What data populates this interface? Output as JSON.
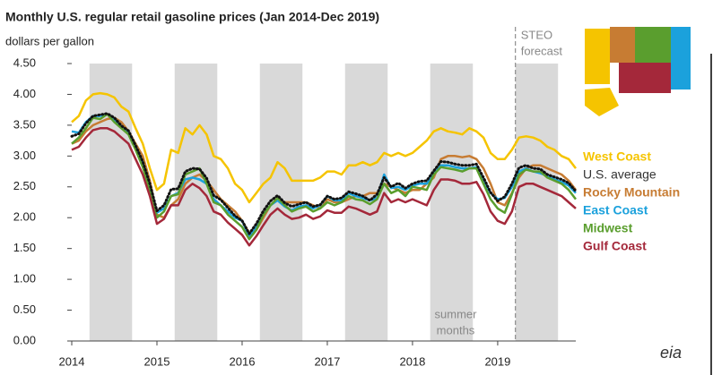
{
  "chart_data": {
    "type": "line",
    "title": "Monthly U.S. regular retail gasoline prices (Jan 2014-Dec 2019)",
    "y_label": "dollars per gallon",
    "x": [
      "2014-01",
      "2014-02",
      "2014-03",
      "2014-04",
      "2014-05",
      "2014-06",
      "2014-07",
      "2014-08",
      "2014-09",
      "2014-10",
      "2014-11",
      "2014-12",
      "2015-01",
      "2015-02",
      "2015-03",
      "2015-04",
      "2015-05",
      "2015-06",
      "2015-07",
      "2015-08",
      "2015-09",
      "2015-10",
      "2015-11",
      "2015-12",
      "2016-01",
      "2016-02",
      "2016-03",
      "2016-04",
      "2016-05",
      "2016-06",
      "2016-07",
      "2016-08",
      "2016-09",
      "2016-10",
      "2016-11",
      "2016-12",
      "2017-01",
      "2017-02",
      "2017-03",
      "2017-04",
      "2017-05",
      "2017-06",
      "2017-07",
      "2017-08",
      "2017-09",
      "2017-10",
      "2017-11",
      "2017-12",
      "2018-01",
      "2018-02",
      "2018-03",
      "2018-04",
      "2018-05",
      "2018-06",
      "2018-07",
      "2018-08",
      "2018-09",
      "2018-10",
      "2018-11",
      "2018-12",
      "2019-01",
      "2019-02",
      "2019-03",
      "2019-04",
      "2019-05",
      "2019-06",
      "2019-07",
      "2019-08",
      "2019-09",
      "2019-10",
      "2019-11",
      "2019-12"
    ],
    "xlim": [
      "2014-01",
      "2019-12"
    ],
    "xticks": [
      {
        "value": "2014-01",
        "label": "2014"
      },
      {
        "value": "2015-01",
        "label": "2015"
      },
      {
        "value": "2016-01",
        "label": "2016"
      },
      {
        "value": "2017-01",
        "label": "2017"
      },
      {
        "value": "2018-01",
        "label": "2018"
      },
      {
        "value": "2019-01",
        "label": "2019"
      }
    ],
    "ylim": [
      0,
      4.5
    ],
    "yticks": [
      {
        "value": 0,
        "label": "0.00"
      },
      {
        "value": 0.5,
        "label": "0.50"
      },
      {
        "value": 1,
        "label": "1.00"
      },
      {
        "value": 1.5,
        "label": "1.50"
      },
      {
        "value": 2,
        "label": "2.00"
      },
      {
        "value": 2.5,
        "label": "2.50"
      },
      {
        "value": 3,
        "label": "3.00"
      },
      {
        "value": 3.5,
        "label": "3.50"
      },
      {
        "value": 4,
        "label": "4.00"
      },
      {
        "value": 4.5,
        "label": "4.50"
      }
    ],
    "shaded_periods": [
      [
        "2014-04",
        "2014-09"
      ],
      [
        "2015-04",
        "2015-09"
      ],
      [
        "2016-04",
        "2016-09"
      ],
      [
        "2017-04",
        "2017-09"
      ],
      [
        "2018-04",
        "2018-09"
      ],
      [
        "2019-04",
        "2019-09"
      ]
    ],
    "shade_color": "#d9d9d9",
    "summer_label": [
      "summer",
      "months"
    ],
    "forecast_start": "2019-04",
    "forecast_label": [
      "STEO",
      "forecast"
    ],
    "source": "eia",
    "series": [
      {
        "name": "West Coast",
        "color": "#f5c400",
        "values": [
          3.55,
          3.65,
          3.9,
          4.0,
          4.02,
          4.0,
          3.95,
          3.8,
          3.72,
          3.45,
          3.2,
          2.8,
          2.45,
          2.55,
          3.1,
          3.05,
          3.45,
          3.35,
          3.5,
          3.35,
          3.0,
          2.95,
          2.8,
          2.55,
          2.45,
          2.25,
          2.4,
          2.55,
          2.65,
          2.9,
          2.8,
          2.6,
          2.6,
          2.6,
          2.6,
          2.65,
          2.75,
          2.75,
          2.7,
          2.85,
          2.85,
          2.9,
          2.85,
          2.9,
          3.05,
          3.0,
          3.05,
          3.0,
          3.05,
          3.15,
          3.25,
          3.4,
          3.45,
          3.4,
          3.38,
          3.35,
          3.45,
          3.4,
          3.3,
          3.05,
          2.95,
          2.95,
          3.1,
          3.3,
          3.32,
          3.3,
          3.25,
          3.15,
          3.1,
          3.0,
          2.95,
          2.8
        ]
      },
      {
        "name": "U.S. average",
        "color": "#111111",
        "dotted": true,
        "values": [
          3.32,
          3.36,
          3.53,
          3.65,
          3.67,
          3.69,
          3.62,
          3.49,
          3.41,
          3.17,
          2.91,
          2.55,
          2.11,
          2.2,
          2.46,
          2.47,
          2.75,
          2.8,
          2.79,
          2.64,
          2.36,
          2.29,
          2.16,
          2.03,
          1.95,
          1.74,
          1.9,
          2.11,
          2.27,
          2.36,
          2.24,
          2.18,
          2.22,
          2.25,
          2.18,
          2.21,
          2.35,
          2.3,
          2.32,
          2.42,
          2.39,
          2.35,
          2.28,
          2.38,
          2.65,
          2.5,
          2.56,
          2.48,
          2.55,
          2.59,
          2.6,
          2.76,
          2.91,
          2.9,
          2.87,
          2.85,
          2.85,
          2.87,
          2.65,
          2.41,
          2.27,
          2.34,
          2.55,
          2.81,
          2.85,
          2.8,
          2.79,
          2.7,
          2.66,
          2.62,
          2.56,
          2.43
        ]
      },
      {
        "name": "Rocky Mountain",
        "color": "#c77c33",
        "values": [
          3.2,
          3.25,
          3.4,
          3.5,
          3.55,
          3.6,
          3.62,
          3.55,
          3.4,
          3.2,
          3.0,
          2.6,
          2.05,
          2.0,
          2.2,
          2.3,
          2.55,
          2.65,
          2.7,
          2.6,
          2.45,
          2.3,
          2.2,
          2.1,
          1.95,
          1.75,
          1.8,
          2.0,
          2.2,
          2.3,
          2.25,
          2.25,
          2.25,
          2.25,
          2.2,
          2.15,
          2.3,
          2.25,
          2.25,
          2.3,
          2.35,
          2.35,
          2.4,
          2.4,
          2.55,
          2.5,
          2.45,
          2.4,
          2.45,
          2.45,
          2.55,
          2.65,
          2.95,
          3.0,
          3.0,
          2.98,
          3.0,
          2.95,
          2.8,
          2.55,
          2.25,
          2.2,
          2.4,
          2.65,
          2.8,
          2.85,
          2.85,
          2.8,
          2.75,
          2.7,
          2.6,
          2.45
        ]
      },
      {
        "name": "East Coast",
        "color": "#1ba1dc",
        "values": [
          3.4,
          3.38,
          3.55,
          3.65,
          3.65,
          3.68,
          3.6,
          3.45,
          3.38,
          3.15,
          2.9,
          2.52,
          2.08,
          2.15,
          2.35,
          2.4,
          2.62,
          2.65,
          2.62,
          2.55,
          2.3,
          2.2,
          2.1,
          2.0,
          1.95,
          1.7,
          1.85,
          2.05,
          2.2,
          2.28,
          2.18,
          2.12,
          2.18,
          2.2,
          2.15,
          2.2,
          2.35,
          2.28,
          2.28,
          2.4,
          2.35,
          2.32,
          2.28,
          2.32,
          2.7,
          2.48,
          2.5,
          2.45,
          2.52,
          2.55,
          2.55,
          2.72,
          2.85,
          2.85,
          2.82,
          2.8,
          2.8,
          2.82,
          2.6,
          2.4,
          2.3,
          2.32,
          2.5,
          2.75,
          2.8,
          2.75,
          2.72,
          2.68,
          2.62,
          2.58,
          2.52,
          2.4
        ]
      },
      {
        "name": "Midwest",
        "color": "#5a9e2e",
        "values": [
          3.2,
          3.3,
          3.45,
          3.62,
          3.6,
          3.68,
          3.55,
          3.45,
          3.35,
          3.1,
          2.82,
          2.45,
          2.0,
          2.1,
          2.35,
          2.38,
          2.7,
          2.75,
          2.8,
          2.55,
          2.25,
          2.2,
          2.05,
          1.95,
          1.85,
          1.65,
          1.8,
          2.05,
          2.2,
          2.32,
          2.2,
          2.1,
          2.15,
          2.18,
          2.1,
          2.15,
          2.25,
          2.2,
          2.25,
          2.35,
          2.3,
          2.28,
          2.22,
          2.3,
          2.55,
          2.4,
          2.45,
          2.35,
          2.5,
          2.48,
          2.45,
          2.7,
          2.82,
          2.8,
          2.78,
          2.75,
          2.8,
          2.8,
          2.55,
          2.3,
          2.15,
          2.08,
          2.38,
          2.7,
          2.78,
          2.75,
          2.75,
          2.65,
          2.6,
          2.55,
          2.45,
          2.3
        ]
      },
      {
        "name": "Gulf Coast",
        "color": "#a4283a",
        "values": [
          3.1,
          3.15,
          3.3,
          3.42,
          3.45,
          3.45,
          3.4,
          3.3,
          3.2,
          2.95,
          2.7,
          2.35,
          1.9,
          1.98,
          2.2,
          2.2,
          2.45,
          2.55,
          2.48,
          2.35,
          2.1,
          2.05,
          1.92,
          1.82,
          1.72,
          1.55,
          1.7,
          1.88,
          2.05,
          2.15,
          2.05,
          1.98,
          2.0,
          2.05,
          1.98,
          2.02,
          2.12,
          2.08,
          2.08,
          2.18,
          2.15,
          2.1,
          2.05,
          2.1,
          2.4,
          2.25,
          2.3,
          2.25,
          2.3,
          2.25,
          2.2,
          2.45,
          2.62,
          2.62,
          2.6,
          2.55,
          2.55,
          2.58,
          2.38,
          2.1,
          1.95,
          1.9,
          2.1,
          2.5,
          2.55,
          2.55,
          2.5,
          2.45,
          2.4,
          2.35,
          2.25,
          2.15
        ]
      }
    ]
  }
}
